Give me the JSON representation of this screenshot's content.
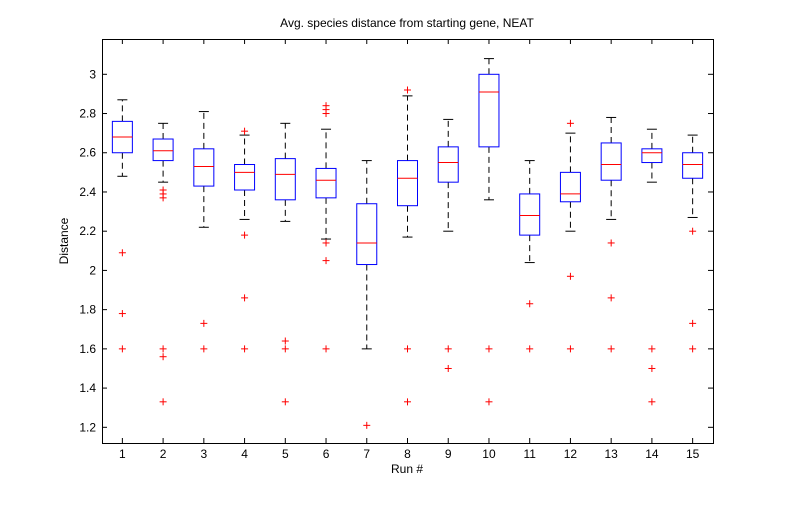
{
  "chart_data": {
    "type": "box",
    "title": "Avg. species distance from starting gene, NEAT",
    "xlabel": "Run #",
    "ylabel": "Distance",
    "xlim": [
      0.5,
      15.5
    ],
    "ylim": [
      1.12,
      3.18
    ],
    "yticks": [
      1.2,
      1.4,
      1.6,
      1.8,
      2,
      2.2,
      2.4,
      2.6,
      2.8,
      3
    ],
    "categories": [
      "1",
      "2",
      "3",
      "4",
      "5",
      "6",
      "7",
      "8",
      "9",
      "10",
      "11",
      "12",
      "13",
      "14",
      "15"
    ],
    "grid": false,
    "colors": {
      "box": "#0000ff",
      "median": "#ff0000",
      "whisker": "#000000",
      "outlier": "#ff0000"
    },
    "boxes": [
      {
        "run": "1",
        "whisker_low": 2.48,
        "q1": 2.6,
        "median": 2.68,
        "q3": 2.76,
        "whisker_high": 2.87,
        "outliers": [
          2.09,
          1.78,
          1.6
        ]
      },
      {
        "run": "2",
        "whisker_low": 2.45,
        "q1": 2.56,
        "median": 2.61,
        "q3": 2.67,
        "whisker_high": 2.75,
        "outliers": [
          2.41,
          2.39,
          2.37,
          1.6,
          1.56,
          1.33
        ]
      },
      {
        "run": "3",
        "whisker_low": 2.22,
        "q1": 2.43,
        "median": 2.53,
        "q3": 2.62,
        "whisker_high": 2.81,
        "outliers": [
          1.73,
          1.6
        ]
      },
      {
        "run": "4",
        "whisker_low": 2.26,
        "q1": 2.41,
        "median": 2.5,
        "q3": 2.54,
        "whisker_high": 2.69,
        "outliers": [
          2.71,
          2.18,
          1.86,
          1.6
        ]
      },
      {
        "run": "5",
        "whisker_low": 2.25,
        "q1": 2.36,
        "median": 2.49,
        "q3": 2.57,
        "whisker_high": 2.75,
        "outliers": [
          1.64,
          1.6,
          1.33
        ]
      },
      {
        "run": "6",
        "whisker_low": 2.16,
        "q1": 2.37,
        "median": 2.46,
        "q3": 2.52,
        "whisker_high": 2.72,
        "outliers": [
          2.84,
          2.82,
          2.8,
          2.14,
          2.05,
          1.6
        ]
      },
      {
        "run": "7",
        "whisker_low": 1.6,
        "q1": 2.03,
        "median": 2.14,
        "q3": 2.34,
        "whisker_high": 2.56,
        "outliers": [
          1.21
        ]
      },
      {
        "run": "8",
        "whisker_low": 2.17,
        "q1": 2.33,
        "median": 2.47,
        "q3": 2.56,
        "whisker_high": 2.89,
        "outliers": [
          2.92,
          1.6,
          1.33
        ]
      },
      {
        "run": "9",
        "whisker_low": 2.2,
        "q1": 2.45,
        "median": 2.55,
        "q3": 2.63,
        "whisker_high": 2.77,
        "outliers": [
          1.6,
          1.5
        ]
      },
      {
        "run": "10",
        "whisker_low": 2.36,
        "q1": 2.63,
        "median": 2.91,
        "q3": 3.0,
        "whisker_high": 3.08,
        "outliers": [
          1.6,
          1.33
        ]
      },
      {
        "run": "11",
        "whisker_low": 2.04,
        "q1": 2.18,
        "median": 2.28,
        "q3": 2.39,
        "whisker_high": 2.56,
        "outliers": [
          1.83,
          1.6
        ]
      },
      {
        "run": "12",
        "whisker_low": 2.2,
        "q1": 2.35,
        "median": 2.39,
        "q3": 2.5,
        "whisker_high": 2.7,
        "outliers": [
          2.75,
          1.97,
          1.6
        ]
      },
      {
        "run": "13",
        "whisker_low": 2.26,
        "q1": 2.46,
        "median": 2.54,
        "q3": 2.65,
        "whisker_high": 2.78,
        "outliers": [
          2.14,
          1.86,
          1.6
        ]
      },
      {
        "run": "14",
        "whisker_low": 2.45,
        "q1": 2.55,
        "median": 2.6,
        "q3": 2.62,
        "whisker_high": 2.72,
        "outliers": [
          1.6,
          1.5,
          1.33
        ]
      },
      {
        "run": "15",
        "whisker_low": 2.27,
        "q1": 2.47,
        "median": 2.54,
        "q3": 2.6,
        "whisker_high": 2.69,
        "outliers": [
          2.2,
          1.73,
          1.6
        ]
      }
    ]
  }
}
